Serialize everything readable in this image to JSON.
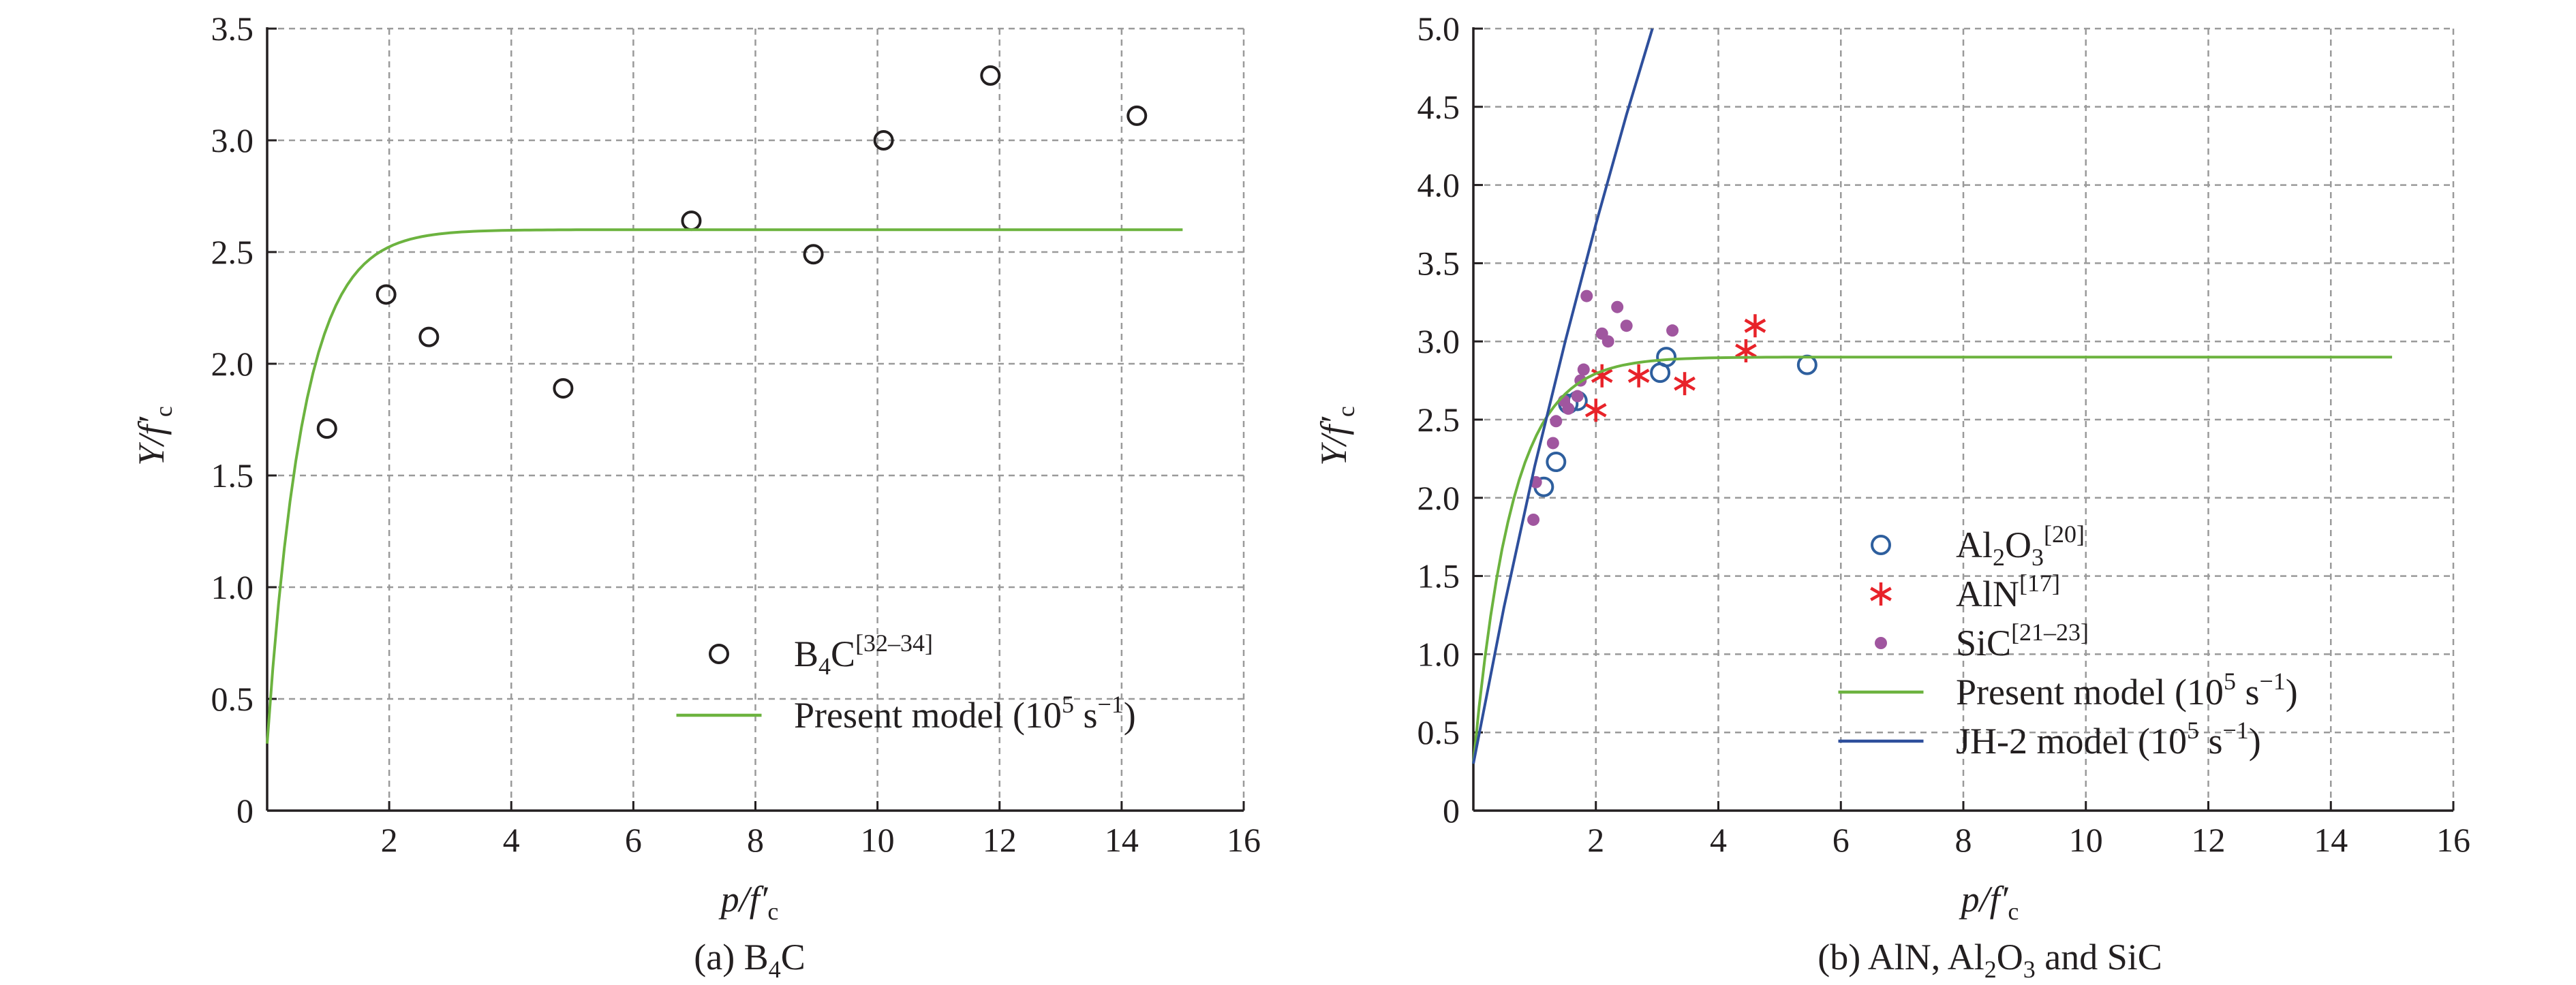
{
  "chart_data": [
    {
      "type": "scatter",
      "caption": "(a) B4C",
      "xlabel": "p/f'c",
      "ylabel": "Y/f'c",
      "xlim": [
        0,
        16
      ],
      "ylim": [
        0,
        3.5
      ],
      "xticks": [
        2,
        4,
        6,
        8,
        10,
        12,
        14,
        16
      ],
      "yticks": [
        0,
        0.5,
        1.0,
        1.5,
        2.0,
        2.5,
        3.0,
        3.5
      ],
      "ytick_labels": [
        "0",
        "0.5",
        "1.0",
        "1.5",
        "2.0",
        "2.5",
        "3.0",
        "3.5"
      ],
      "grid": true,
      "legend_position": "lower-right",
      "series": [
        {
          "name": "B4C[32–34]",
          "legend_main": "B",
          "legend_sub": "4",
          "legend_tail": "C",
          "legend_sup": "[32–34]",
          "kind": "scatter",
          "marker": "open-circle",
          "color": "#231f20",
          "x": [
            0.98,
            1.95,
            2.65,
            4.85,
            6.95,
            8.95,
            10.1,
            11.85,
            14.25
          ],
          "y": [
            1.71,
            2.31,
            2.12,
            1.89,
            2.64,
            2.49,
            3.0,
            3.29,
            3.11
          ]
        },
        {
          "name": "Present model (105 s−1)",
          "legend_main": "Present model (10",
          "legend_sup": "5",
          "legend_tail": " s",
          "legend_sup2": "−1",
          "legend_end": ")",
          "kind": "line",
          "color": "#6cb33f",
          "curve": {
            "cap": 2.6,
            "start": 0.3,
            "rate": 1.7,
            "x_end": 15
          }
        }
      ]
    },
    {
      "type": "scatter",
      "caption": "(b) AlN, Al2O3 and SiC",
      "xlabel": "p/f'c",
      "ylabel": "Y/f'c",
      "xlim": [
        0,
        16
      ],
      "ylim": [
        0,
        5.0
      ],
      "xticks": [
        2,
        4,
        6,
        8,
        10,
        12,
        14,
        16
      ],
      "yticks": [
        0,
        0.5,
        1.0,
        1.5,
        2.0,
        2.5,
        3.0,
        3.5,
        4.0,
        4.5,
        5.0
      ],
      "ytick_labels": [
        "0",
        "0.5",
        "1.0",
        "1.5",
        "2.0",
        "2.5",
        "3.0",
        "3.5",
        "4.0",
        "4.5",
        "5.0"
      ],
      "grid": true,
      "legend_position": "lower-center",
      "series": [
        {
          "name": "Al2O3[20]",
          "legend_main": "Al",
          "legend_sub": "2",
          "legend_tail": "O",
          "legend_sub2": "3",
          "legend_sup": "[20]",
          "kind": "scatter",
          "marker": "open-circle",
          "color": "#2e5f9e",
          "x": [
            1.15,
            1.35,
            1.55,
            1.7,
            3.05,
            3.15,
            5.45
          ],
          "y": [
            2.07,
            2.23,
            2.6,
            2.62,
            2.8,
            2.9,
            2.85
          ]
        },
        {
          "name": "AlN[17]",
          "legend_main": "AlN",
          "legend_sup": "[17]",
          "kind": "scatter",
          "marker": "asterisk",
          "color": "#e8232a",
          "x": [
            2.0,
            2.1,
            2.7,
            3.45,
            4.45,
            4.6
          ],
          "y": [
            2.56,
            2.78,
            2.78,
            2.73,
            2.94,
            3.1
          ]
        },
        {
          "name": "SiC[21–23]",
          "legend_main": "SiC",
          "legend_sup": "[21–23]",
          "kind": "scatter",
          "marker": "filled-dot",
          "color": "#a0569f",
          "x": [
            0.98,
            1.02,
            1.3,
            1.35,
            1.48,
            1.55,
            1.7,
            1.75,
            1.8,
            1.85,
            2.1,
            2.2,
            2.35,
            2.5,
            3.25
          ],
          "y": [
            1.86,
            2.1,
            2.35,
            2.49,
            2.62,
            2.57,
            2.65,
            2.75,
            2.82,
            3.29,
            3.05,
            3.0,
            3.22,
            3.1,
            3.07
          ]
        },
        {
          "name": "Present model (105 s−1)",
          "legend_main": "Present model (10",
          "legend_sup": "5",
          "legend_tail": " s",
          "legend_sup2": "−1",
          "legend_end": ")",
          "kind": "line",
          "color": "#6cb33f",
          "curve": {
            "cap": 2.9,
            "start": 0.3,
            "rate": 1.6,
            "x_end": 15
          }
        },
        {
          "name": "JH-2 model (105 s−1)",
          "legend_main": "JH-2 model (10",
          "legend_sup": "5",
          "legend_tail": " s",
          "legend_sup2": "−1",
          "legend_end": ")",
          "kind": "line",
          "color": "#2e4f9c",
          "x": [
            0,
            0.5,
            1.0,
            1.5,
            2.0,
            2.5,
            3.0
          ],
          "y": [
            0.3,
            1.3,
            2.2,
            3.0,
            3.75,
            4.45,
            5.1
          ]
        }
      ]
    }
  ]
}
